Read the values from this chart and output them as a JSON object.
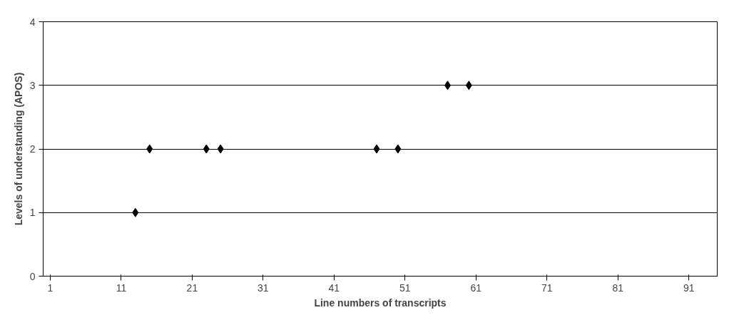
{
  "chart_data": {
    "type": "scatter",
    "xlabel": "Line numbers of transcripts",
    "ylabel": "Levels of understanding (APOS)",
    "x": [
      13,
      15,
      23,
      25,
      47,
      50,
      57,
      60
    ],
    "values": [
      1,
      2,
      2,
      2,
      2,
      2,
      3,
      3
    ],
    "color": "#000000",
    "marker": "diamond",
    "xlim": [
      0,
      95
    ],
    "xticks": [
      1,
      11,
      21,
      31,
      41,
      51,
      61,
      71,
      81,
      91
    ],
    "ylim": [
      0,
      4
    ],
    "yticks": [
      0,
      1,
      2,
      3,
      4
    ],
    "grid": "y"
  }
}
